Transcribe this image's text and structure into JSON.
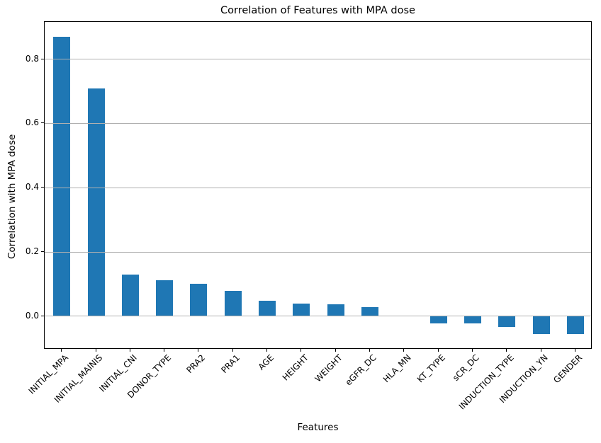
{
  "chart_data": {
    "type": "bar",
    "title": "Correlation of Features with MPA dose",
    "xlabel": "Features",
    "ylabel": "Correlation with MPA dose",
    "categories": [
      "INITIAL_MPA",
      "INITIAL_MAINIS",
      "INITIAL_CNI",
      "DONOR_TYPE",
      "PRA2",
      "PRA1",
      "AGE",
      "HEIGHT",
      "WEIGHT",
      "eGFR_DC",
      "HLA_MN",
      "KT_TYPE",
      "sCR_DC",
      "INDUCTION_TYPE",
      "INDUCTION_YN",
      "GENDER"
    ],
    "values": [
      0.87,
      0.71,
      0.13,
      0.113,
      0.102,
      0.08,
      0.048,
      0.04,
      0.037,
      0.028,
      0.0,
      -0.022,
      -0.022,
      -0.033,
      -0.055,
      -0.055
    ],
    "ylim": [
      -0.104,
      0.916
    ],
    "yticks": [
      0.0,
      0.2,
      0.4,
      0.6,
      0.8
    ],
    "ytick_labels": [
      "0.0",
      "0.2",
      "0.4",
      "0.6",
      "0.8"
    ],
    "bar_color": "#1f77b4",
    "bar_width_fraction": 0.5,
    "grid": true,
    "grid_axis": "y",
    "grid_color": "#b0b0b0",
    "grid_on_top": true,
    "x_tick_rotation": 45,
    "legend": null,
    "background": "#ffffff"
  }
}
